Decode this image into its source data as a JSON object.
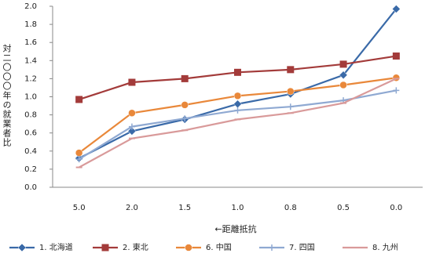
{
  "chart_data": {
    "type": "line",
    "y_label": "対二〇〇〇年の就業者比",
    "x_label": "←距離抵抗",
    "categories": [
      "5.0",
      "2.0",
      "1.5",
      "1.0",
      "0.8",
      "0.5",
      "0.0"
    ],
    "series": [
      {
        "name": "1. 北海道",
        "color": "#3a6aa8",
        "marker": "diamond",
        "values": [
          0.32,
          0.62,
          0.75,
          0.92,
          1.03,
          1.24,
          1.97
        ]
      },
      {
        "name": "2. 東北",
        "color": "#a33b3a",
        "marker": "square",
        "values": [
          0.97,
          1.16,
          1.2,
          1.27,
          1.3,
          1.36,
          1.45
        ]
      },
      {
        "name": "6. 中国",
        "color": "#e9883a",
        "marker": "circle",
        "values": [
          0.38,
          0.82,
          0.91,
          1.01,
          1.06,
          1.13,
          1.21
        ]
      },
      {
        "name": "7. 四国",
        "color": "#8fa9d2",
        "marker": "plus",
        "values": [
          0.31,
          0.67,
          0.76,
          0.85,
          0.89,
          0.96,
          1.07
        ]
      },
      {
        "name": "8. 九州",
        "color": "#d99a9a",
        "marker": "dash",
        "values": [
          0.22,
          0.54,
          0.63,
          0.75,
          0.82,
          0.93,
          1.2
        ]
      }
    ],
    "ylim": [
      0,
      2
    ],
    "yticks": [
      {
        "value": 0,
        "label": "0.0"
      },
      0.2,
      0.4,
      0.6,
      0.8,
      {
        "value": 1,
        "label": "1.0"
      },
      1.2,
      1.4,
      1.6,
      1.8,
      {
        "value": 2,
        "label": "2.0"
      }
    ],
    "grid": false
  }
}
